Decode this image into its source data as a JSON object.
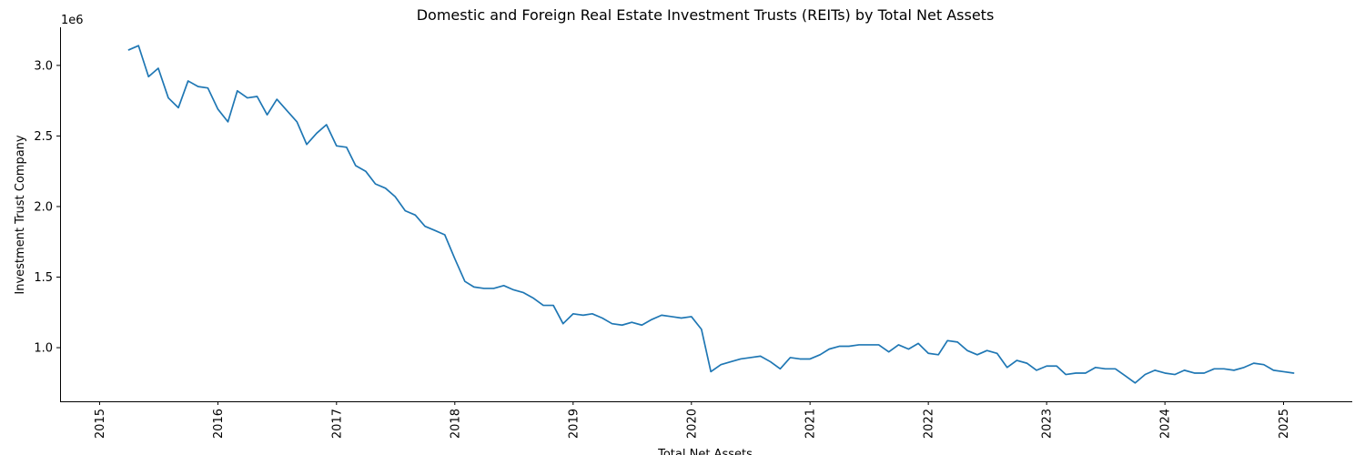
{
  "chart_data": {
    "type": "line",
    "title": "Domestic and Foreign Real Estate Investment Trusts (REITs) by Total Net Assets",
    "xlabel": "Total Net Assets",
    "ylabel": "Investment Trust Company",
    "y_offset_label": "1e6",
    "y_scale": 1000000,
    "xlim": [
      "2014-09-01",
      "2025-08-01"
    ],
    "ylim": [
      0.62,
      3.27
    ],
    "x_ticks": [
      "2015",
      "2016",
      "2017",
      "2018",
      "2019",
      "2020",
      "2021",
      "2022",
      "2023",
      "2024",
      "2025"
    ],
    "y_ticks": [
      "1.0",
      "1.5",
      "2.0",
      "2.5",
      "3.0"
    ],
    "grid": false,
    "line_color": "#1f77b4",
    "series": [
      {
        "x": [
          "2015-04",
          "2015-05",
          "2015-06",
          "2015-07",
          "2015-08",
          "2015-09",
          "2015-10",
          "2015-11",
          "2015-12",
          "2016-01",
          "2016-02",
          "2016-03",
          "2016-04",
          "2016-05",
          "2016-06",
          "2016-07",
          "2016-08",
          "2016-09",
          "2016-10",
          "2016-11",
          "2016-12",
          "2017-01",
          "2017-02",
          "2017-03",
          "2017-04",
          "2017-05",
          "2017-06",
          "2017-07",
          "2017-08",
          "2017-09",
          "2017-10",
          "2017-11",
          "2017-12",
          "2018-01",
          "2018-02",
          "2018-03",
          "2018-04",
          "2018-05",
          "2018-06",
          "2018-07",
          "2018-08",
          "2018-09",
          "2018-10",
          "2018-11",
          "2018-12",
          "2019-01",
          "2019-02",
          "2019-03",
          "2019-04",
          "2019-05",
          "2019-06",
          "2019-07",
          "2019-08",
          "2019-09",
          "2019-10",
          "2019-11",
          "2019-12",
          "2020-01",
          "2020-02",
          "2020-03",
          "2020-04",
          "2020-05",
          "2020-06",
          "2020-07",
          "2020-08",
          "2020-09",
          "2020-10",
          "2020-11",
          "2020-12",
          "2021-01",
          "2021-02",
          "2021-03",
          "2021-04",
          "2021-05",
          "2021-06",
          "2021-07",
          "2021-08",
          "2021-09",
          "2021-10",
          "2021-11",
          "2021-12",
          "2022-01",
          "2022-02",
          "2022-03",
          "2022-04",
          "2022-05",
          "2022-06",
          "2022-07",
          "2022-08",
          "2022-09",
          "2022-10",
          "2022-11",
          "2022-12",
          "2023-01",
          "2023-02",
          "2023-03",
          "2023-04",
          "2023-05",
          "2023-06",
          "2023-07",
          "2023-08",
          "2023-09",
          "2023-10",
          "2023-11",
          "2023-12",
          "2024-01",
          "2024-02",
          "2024-03",
          "2024-04",
          "2024-05",
          "2024-06",
          "2024-07",
          "2024-08",
          "2024-09",
          "2024-10",
          "2024-11",
          "2024-12",
          "2025-01",
          "2025-02"
        ],
        "y": [
          3.11,
          3.14,
          2.92,
          2.98,
          2.77,
          2.7,
          2.89,
          2.85,
          2.84,
          2.69,
          2.6,
          2.82,
          2.77,
          2.78,
          2.65,
          2.76,
          2.68,
          2.6,
          2.44,
          2.52,
          2.58,
          2.43,
          2.42,
          2.29,
          2.25,
          2.16,
          2.13,
          2.07,
          1.97,
          1.94,
          1.86,
          1.83,
          1.8,
          1.63,
          1.47,
          1.43,
          1.42,
          1.42,
          1.44,
          1.41,
          1.39,
          1.35,
          1.3,
          1.3,
          1.17,
          1.24,
          1.23,
          1.24,
          1.21,
          1.17,
          1.16,
          1.18,
          1.16,
          1.2,
          1.23,
          1.22,
          1.21,
          1.22,
          1.13,
          0.83,
          0.88,
          0.9,
          0.92,
          0.93,
          0.94,
          0.9,
          0.85,
          0.93,
          0.92,
          0.92,
          0.95,
          0.99,
          1.01,
          1.01,
          1.02,
          1.02,
          1.02,
          0.97,
          1.02,
          0.99,
          1.03,
          0.96,
          0.95,
          1.05,
          1.04,
          0.98,
          0.95,
          0.98,
          0.96,
          0.86,
          0.91,
          0.89,
          0.84,
          0.87,
          0.87,
          0.81,
          0.82,
          0.82,
          0.86,
          0.85,
          0.85,
          0.8,
          0.75,
          0.81,
          0.84,
          0.82,
          0.81,
          0.84,
          0.82,
          0.82,
          0.85,
          0.85,
          0.84,
          0.86,
          0.89,
          0.88,
          0.84,
          0.83,
          0.82
        ]
      }
    ]
  }
}
